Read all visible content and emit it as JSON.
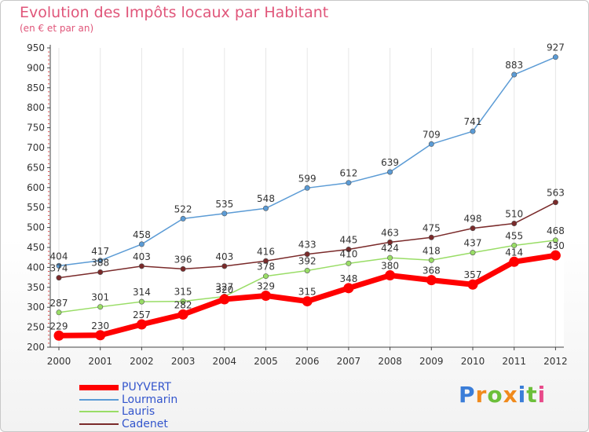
{
  "header": {
    "title": "Evolution des Impôts locaux par Habitant",
    "subtitle": "(en € et par an)"
  },
  "chart_data": {
    "type": "line",
    "title": "Evolution des Impôts locaux par Habitant",
    "subtitle": "(en € et par an)",
    "xlabel": "",
    "ylabel": "",
    "x": [
      2000,
      2001,
      2002,
      2003,
      2004,
      2005,
      2006,
      2007,
      2008,
      2009,
      2010,
      2011,
      2012
    ],
    "ylim": [
      200,
      950
    ],
    "yticks": [
      200,
      250,
      300,
      350,
      400,
      450,
      500,
      550,
      600,
      650,
      700,
      750,
      800,
      850,
      900,
      950
    ],
    "grid": "vertical",
    "legend_position": "bottom-left",
    "series": [
      {
        "name": "PUYVERT",
        "color": "#ff0000",
        "values": [
          229,
          230,
          257,
          282,
          320,
          329,
          315,
          348,
          380,
          368,
          357,
          414,
          430
        ]
      },
      {
        "name": "Lourmarin",
        "color": "#5b9bd5",
        "values": [
          404,
          417,
          458,
          522,
          535,
          548,
          599,
          612,
          639,
          709,
          741,
          883,
          927
        ]
      },
      {
        "name": "Lauris",
        "color": "#99dd66",
        "values": [
          287,
          301,
          314,
          315,
          327,
          378,
          392,
          410,
          424,
          418,
          437,
          455,
          468
        ]
      },
      {
        "name": "Cadenet",
        "color": "#7a2a2a",
        "values": [
          374,
          388,
          403,
          396,
          403,
          416,
          433,
          445,
          463,
          475,
          498,
          510,
          563
        ]
      }
    ]
  },
  "legend": {
    "items": [
      {
        "label": "PUYVERT",
        "color": "#ff0000"
      },
      {
        "label": "Lourmarin",
        "color": "#5b9bd5"
      },
      {
        "label": "Lauris",
        "color": "#99dd66"
      },
      {
        "label": "Cadenet",
        "color": "#7a2a2a"
      }
    ],
    "label_color": "#3355cc"
  },
  "logo": {
    "letters": [
      "P",
      "r",
      "o",
      "x",
      "i",
      "t",
      "i"
    ],
    "colors": [
      "#3a7dd8",
      "#f08a1c",
      "#6cbf3a",
      "#f08a1c",
      "#3a7dd8",
      "#6cbf3a",
      "#e84a8a"
    ]
  }
}
